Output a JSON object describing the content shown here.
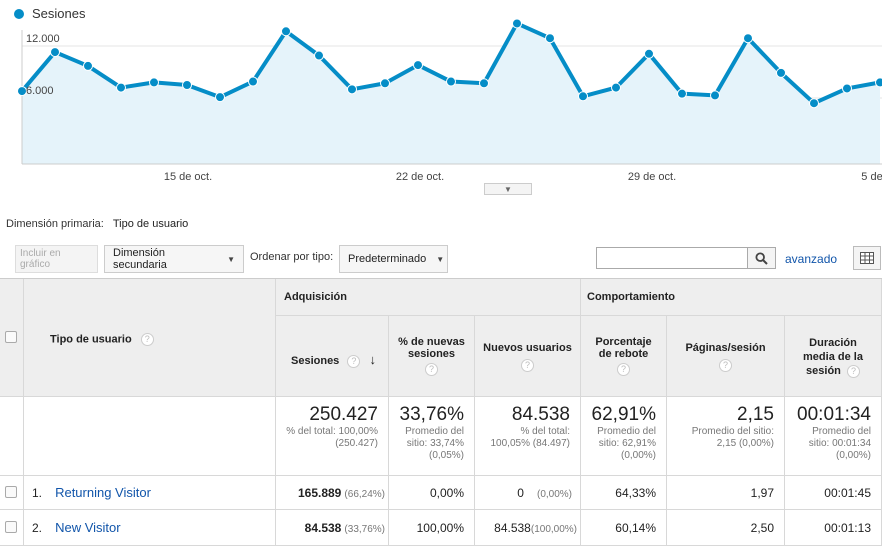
{
  "chart": {
    "legend_label": "Sesiones",
    "series_color": "#058dc7",
    "y_ticks": [
      "12.000",
      "6.000"
    ],
    "x_ticks": [
      "15 de oct.",
      "22 de oct.",
      "29 de oct.",
      "5 de"
    ]
  },
  "chart_data": {
    "type": "line",
    "title": "",
    "series": [
      {
        "name": "Sesiones",
        "values": [
          6800,
          11300,
          9700,
          7200,
          7800,
          7500,
          6100,
          7900,
          13700,
          10900,
          7000,
          7700,
          9800,
          7900,
          7700,
          14600,
          12900,
          6200,
          7200,
          11100,
          6500,
          6300,
          12900,
          8900,
          5400,
          7100,
          7800
        ]
      }
    ],
    "ylim": [
      0,
      18000
    ],
    "grid": true
  },
  "dimension": {
    "label": "Dimensión primaria:",
    "value": "Tipo de usuario"
  },
  "toolbar": {
    "plot_rows": "Incluir en gráfico",
    "secondary_dimension": "Dimensión secundaria",
    "sort_label": "Ordenar por tipo:",
    "sort_value": "Predeterminado",
    "search_placeholder": "",
    "advanced": "avanzado"
  },
  "table": {
    "dim_header": "Tipo de usuario",
    "group_acquisition": "Adquisición",
    "group_behavior": "Comportamiento",
    "columns": {
      "sessions": "Sesiones",
      "new_sessions_pct": "% de nuevas sesiones",
      "new_users": "Nuevos usuarios",
      "bounce_rate": "Porcentaje de rebote",
      "pages_session": "Páginas/sesión",
      "avg_duration": "Duración media de la sesión"
    },
    "totals": {
      "sessions": "250.427",
      "sessions_sub": "% del total: 100,00% (250.427)",
      "new_sessions_pct": "33,76%",
      "new_sessions_pct_sub": "Promedio del sitio: 33,74% (0,05%)",
      "new_users": "84.538",
      "new_users_sub": "% del total: 100,05% (84.497)",
      "bounce_rate": "62,91%",
      "bounce_rate_sub": "Promedio del sitio: 62,91% (0,00%)",
      "pages_session": "2,15",
      "pages_session_sub": "Promedio del sitio: 2,15 (0,00%)",
      "avg_duration": "00:01:34",
      "avg_duration_sub": "Promedio del sitio: 00:01:34 (0,00%)"
    },
    "rows": [
      {
        "index": "1.",
        "name": "Returning Visitor",
        "sessions": "165.889",
        "sessions_pct": "(66,24%)",
        "new_sessions_pct": "0,00%",
        "new_users": "0",
        "new_users_pct": "(0,00%)",
        "bounce_rate": "64,33%",
        "pages_session": "1,97",
        "avg_duration": "00:01:45"
      },
      {
        "index": "2.",
        "name": "New Visitor",
        "sessions": "84.538",
        "sessions_pct": "(33,76%)",
        "new_sessions_pct": "100,00%",
        "new_users": "84.538",
        "new_users_pct": "(100,00%)",
        "bounce_rate": "60,14%",
        "pages_session": "2,50",
        "avg_duration": "00:01:13"
      }
    ]
  }
}
